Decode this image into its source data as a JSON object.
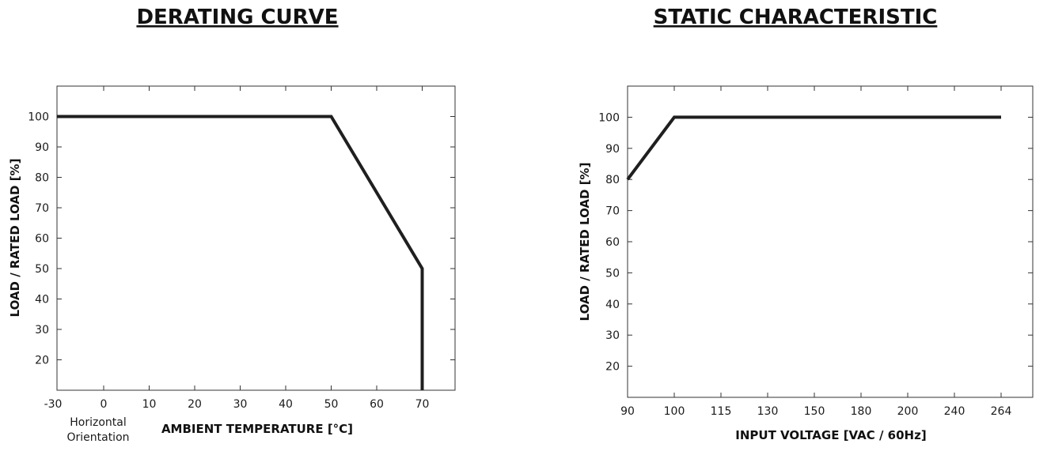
{
  "chart_data": [
    {
      "type": "line",
      "title": "DERATING CURVE",
      "xlabel": "AMBIENT TEMPERATURE [°C]",
      "ylabel": "LOAD / RATED LOAD [%]",
      "x_ticks": [
        "-30",
        "0",
        "10",
        "20",
        "30",
        "40",
        "50",
        "60",
        "70"
      ],
      "x_tick_values": [
        -30,
        0,
        10,
        20,
        30,
        40,
        50,
        60,
        70
      ],
      "y_ticks": [
        "20",
        "30",
        "40",
        "50",
        "60",
        "70",
        "80",
        "90",
        "100"
      ],
      "y_tick_values": [
        20,
        30,
        40,
        50,
        60,
        70,
        80,
        90,
        100
      ],
      "xlim": [
        -30,
        77
      ],
      "ylim": [
        10,
        110
      ],
      "annotation": [
        "Horizontal",
        "Orientation"
      ],
      "series": [
        {
          "x": [
            -30,
            50,
            70,
            70
          ],
          "y": [
            100,
            100,
            50,
            10
          ]
        }
      ]
    },
    {
      "type": "line",
      "title": "STATIC CHARACTERISTIC",
      "xlabel": "INPUT VOLTAGE [VAC / 60Hz]",
      "ylabel": "LOAD / RATED LOAD [%]",
      "x_ticks": [
        "90",
        "100",
        "115",
        "130",
        "150",
        "180",
        "200",
        "240",
        "264"
      ],
      "y_ticks": [
        "20",
        "30",
        "40",
        "50",
        "60",
        "70",
        "80",
        "90",
        "100"
      ],
      "y_tick_values": [
        20,
        30,
        40,
        50,
        60,
        70,
        80,
        90,
        100
      ],
      "ylim": [
        10,
        110
      ],
      "x_scale": "categorical",
      "series": [
        {
          "x": [
            "90",
            "100",
            "264"
          ],
          "y": [
            80,
            100,
            100
          ]
        }
      ]
    }
  ]
}
